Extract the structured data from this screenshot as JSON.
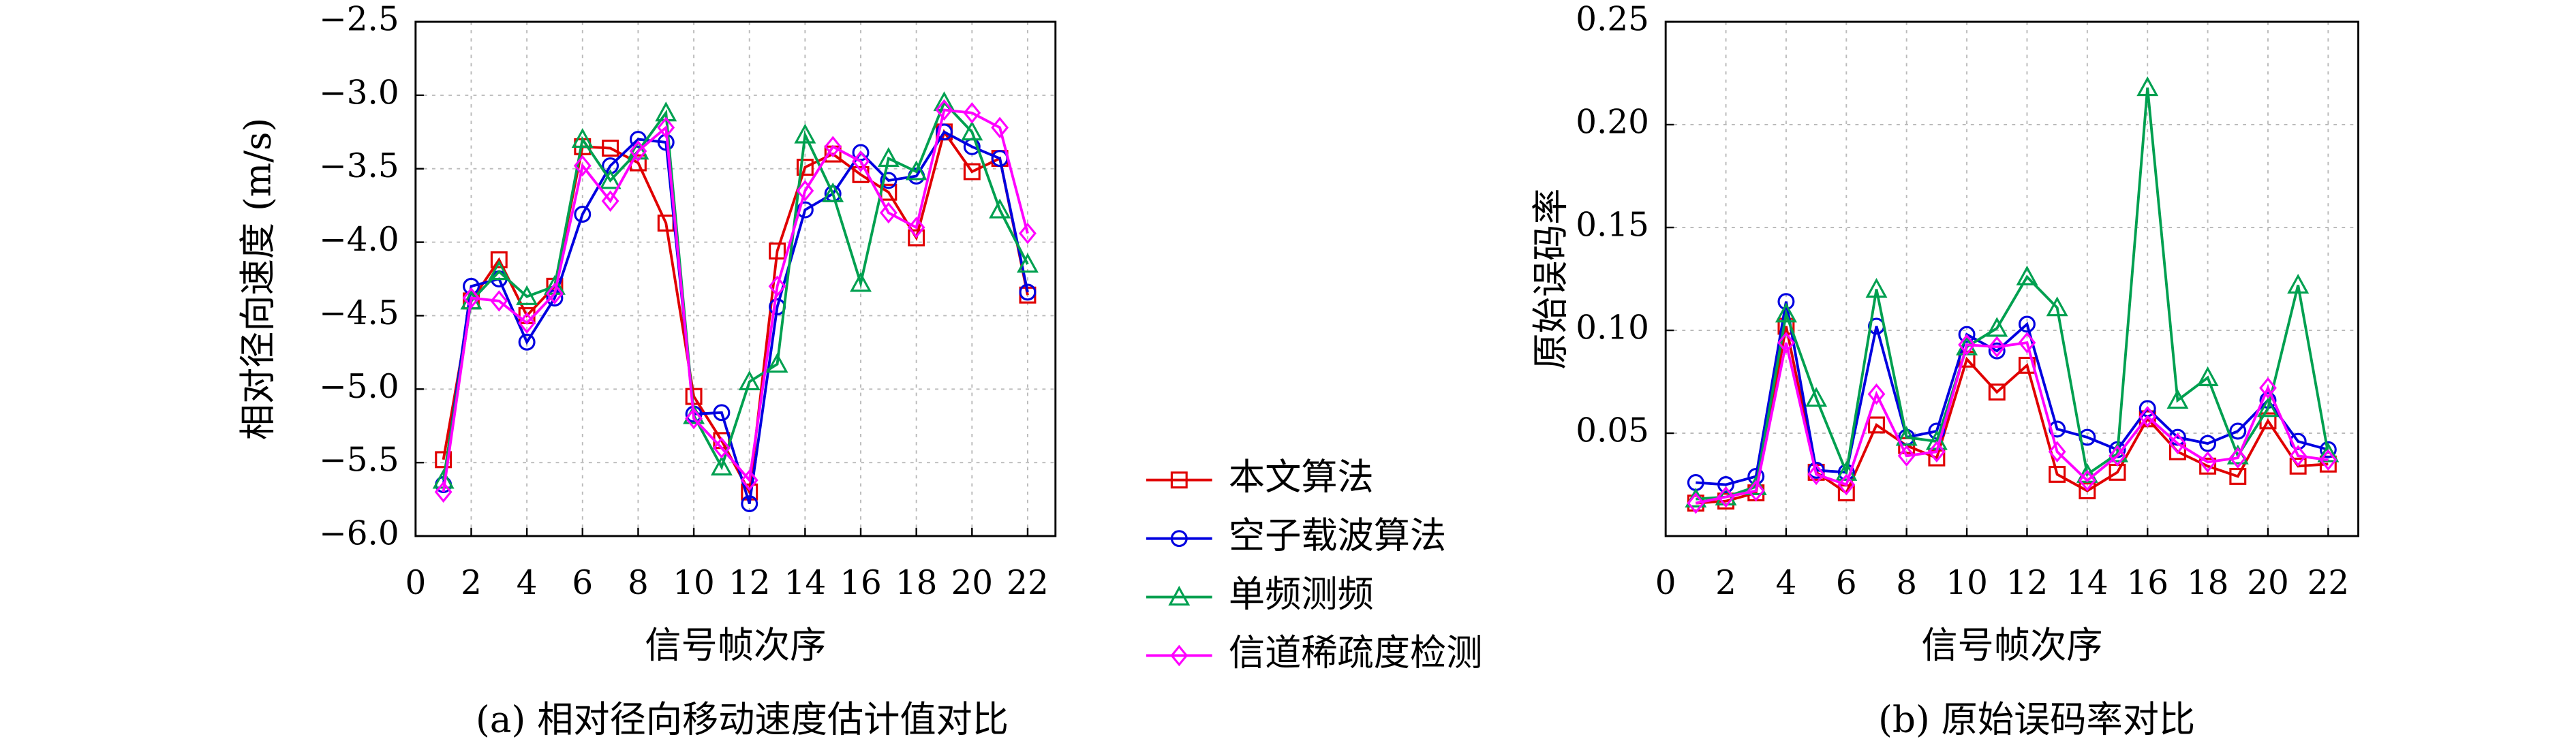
{
  "chart_data": [
    {
      "type": "line",
      "ylabel": "相对径向速度 (m/s)",
      "xlabel": "信号帧次序",
      "caption": "(a) 相对径向移动速度估计值对比",
      "x": [
        1,
        2,
        3,
        4,
        5,
        6,
        7,
        8,
        9,
        10,
        11,
        12,
        13,
        14,
        15,
        16,
        17,
        18,
        19,
        20,
        21,
        22
      ],
      "xlim": [
        0,
        23
      ],
      "xticks": [
        0,
        2,
        4,
        6,
        8,
        10,
        12,
        14,
        16,
        18,
        20,
        22
      ],
      "ylim": [
        -6.0,
        -2.5
      ],
      "yticks": [
        {
          "value": -6.0,
          "label": "−6.0"
        },
        {
          "value": -5.5,
          "label": "−5.5"
        },
        {
          "value": -5.0,
          "label": "−5.0"
        },
        {
          "value": -4.5,
          "label": "−4.5"
        },
        {
          "value": -4.0,
          "label": "−4.0"
        },
        {
          "value": -3.5,
          "label": "−3.5"
        },
        {
          "value": -3.0,
          "label": "−3.0"
        },
        {
          "value": -2.5,
          "label": "−2.5"
        }
      ],
      "grid": true,
      "series": [
        {
          "name": "本文算法",
          "color": "#e00000",
          "marker": "square",
          "values": [
            -5.48,
            -4.4,
            -4.12,
            -4.5,
            -4.3,
            -3.35,
            -3.36,
            -3.46,
            -3.87,
            -5.05,
            -5.35,
            -5.7,
            -4.06,
            -3.49,
            -3.4,
            -3.54,
            -3.66,
            -3.97,
            -3.25,
            -3.52,
            -3.43,
            -4.36
          ]
        },
        {
          "name": "空子载波算法",
          "color": "#0000e0",
          "marker": "circle",
          "values": [
            -5.65,
            -4.3,
            -4.25,
            -4.68,
            -4.38,
            -3.81,
            -3.48,
            -3.3,
            -3.32,
            -5.17,
            -5.16,
            -5.78,
            -4.44,
            -3.78,
            -3.67,
            -3.39,
            -3.58,
            -3.55,
            -3.25,
            -3.35,
            -3.43,
            -4.34
          ]
        },
        {
          "name": "单频测频",
          "color": "#00a050",
          "marker": "triangle",
          "values": [
            -5.62,
            -4.4,
            -4.2,
            -4.37,
            -4.3,
            -3.3,
            -3.58,
            -3.38,
            -3.12,
            -5.18,
            -5.53,
            -4.95,
            -4.83,
            -3.27,
            -3.67,
            -4.28,
            -3.43,
            -3.52,
            -3.05,
            -3.25,
            -3.78,
            -4.15
          ]
        },
        {
          "name": "信道稀疏度检测",
          "color": "#ff00ff",
          "marker": "diamond",
          "values": [
            -5.7,
            -4.38,
            -4.4,
            -4.55,
            -4.35,
            -3.48,
            -3.72,
            -3.38,
            -3.22,
            -5.2,
            -5.4,
            -5.62,
            -4.3,
            -3.65,
            -3.35,
            -3.45,
            -3.8,
            -3.9,
            -3.1,
            -3.12,
            -3.22,
            -3.94
          ]
        }
      ]
    },
    {
      "type": "line",
      "ylabel": "原始误码率",
      "xlabel": "信号帧次序",
      "caption": "(b) 原始误码率对比",
      "x": [
        1,
        2,
        3,
        4,
        5,
        6,
        7,
        8,
        9,
        10,
        11,
        12,
        13,
        14,
        15,
        16,
        17,
        18,
        19,
        20,
        21,
        22
      ],
      "xlim": [
        0,
        23
      ],
      "xticks": [
        0,
        2,
        4,
        6,
        8,
        10,
        12,
        14,
        16,
        18,
        20,
        22
      ],
      "ylim": [
        0,
        0.25
      ],
      "yticks": [
        0.05,
        {
          "value": 0.1,
          "label": "0.10"
        },
        0.15,
        {
          "value": 0.2,
          "label": "0.20"
        },
        0.25
      ],
      "grid": true,
      "series": [
        {
          "color": "#e00000",
          "marker": "square",
          "values": [
            0.016,
            0.017,
            0.021,
            0.102,
            0.031,
            0.021,
            0.054,
            0.044,
            0.038,
            0.086,
            0.07,
            0.083,
            0.03,
            0.022,
            0.031,
            0.057,
            0.041,
            0.034,
            0.029,
            0.056,
            0.034,
            0.035
          ]
        },
        {
          "color": "#0000e0",
          "marker": "circle",
          "values": [
            0.026,
            0.025,
            0.029,
            0.114,
            0.032,
            0.031,
            0.102,
            0.048,
            0.051,
            0.098,
            0.09,
            0.103,
            0.052,
            0.048,
            0.042,
            0.062,
            0.048,
            0.045,
            0.051,
            0.066,
            0.046,
            0.042
          ]
        },
        {
          "color": "#00a050",
          "marker": "triangle",
          "values": [
            0.018,
            0.019,
            0.024,
            0.108,
            0.067,
            0.031,
            0.12,
            0.048,
            0.046,
            0.092,
            0.101,
            0.126,
            0.111,
            0.03,
            0.04,
            0.218,
            0.066,
            0.077,
            0.039,
            0.062,
            0.122,
            0.04
          ]
        },
        {
          "color": "#ff00ff",
          "marker": "diamond",
          "values": [
            0.016,
            0.019,
            0.022,
            0.094,
            0.03,
            0.025,
            0.069,
            0.039,
            0.041,
            0.093,
            0.092,
            0.094,
            0.041,
            0.027,
            0.039,
            0.058,
            0.045,
            0.036,
            0.038,
            0.072,
            0.039,
            0.037
          ]
        }
      ]
    }
  ]
}
